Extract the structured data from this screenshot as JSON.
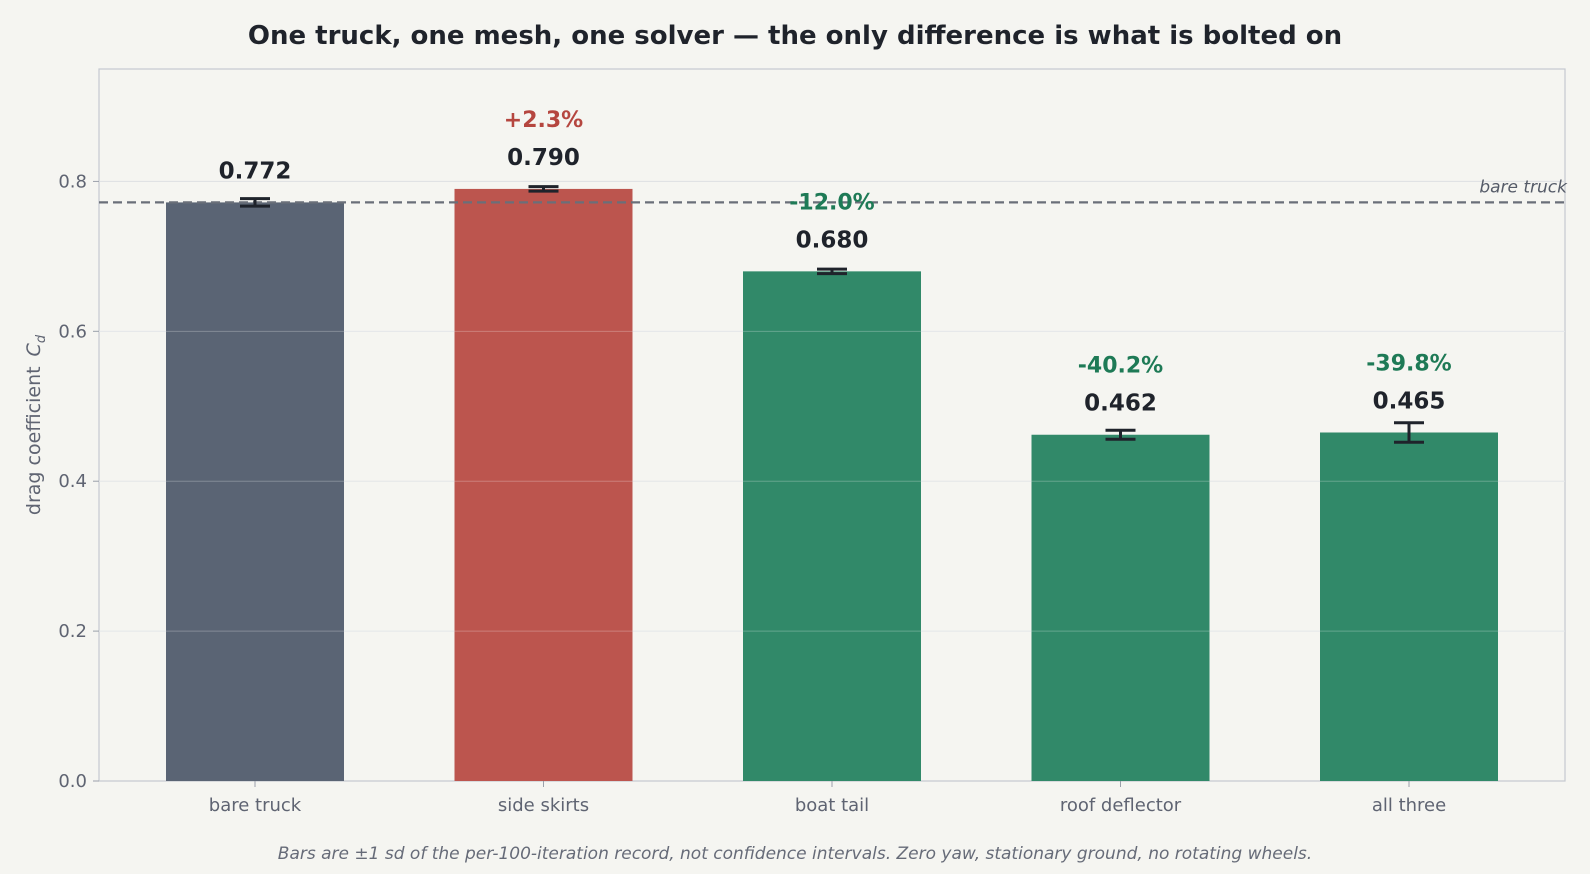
{
  "chart_data": {
    "type": "bar",
    "title": "One truck, one mesh, one solver — the only difference is what is bolted on",
    "ylabel": "drag coefficient",
    "ylabel_symbol": "C",
    "ylabel_subscript": "d",
    "xlabel": "",
    "ylim": [
      0,
      0.95
    ],
    "yticks": [
      "0.0",
      "0.2",
      "0.4",
      "0.6",
      "0.8"
    ],
    "ytick_values": [
      0,
      0.2,
      0.4,
      0.6,
      0.8
    ],
    "grid": "horizontal",
    "categories": [
      "bare truck",
      "side skirts",
      "boat tail",
      "roof deflector",
      "all three"
    ],
    "values": [
      0.772,
      0.79,
      0.68,
      0.462,
      0.465
    ],
    "value_labels": [
      "0.772",
      "0.790",
      "0.680",
      "0.462",
      "0.465"
    ],
    "errors": [
      0.005,
      0.003,
      0.003,
      0.006,
      0.013
    ],
    "change_labels": [
      "",
      "+2.3%",
      "-12.0%",
      "-40.2%",
      "-39.8%"
    ],
    "bar_colors": [
      "#5a6474",
      "#bc554e",
      "#318969",
      "#318969",
      "#318969"
    ],
    "change_colors": [
      "",
      "#b5463f",
      "#1e7a56",
      "#1e7a56",
      "#1e7a56"
    ],
    "reference_line": {
      "value": 0.772,
      "label": "bare truck"
    },
    "caption": "Bars are ±1 sd of the per-100-iteration record, not confidence intervals. Zero yaw, stationary ground, no rotating wheels."
  }
}
